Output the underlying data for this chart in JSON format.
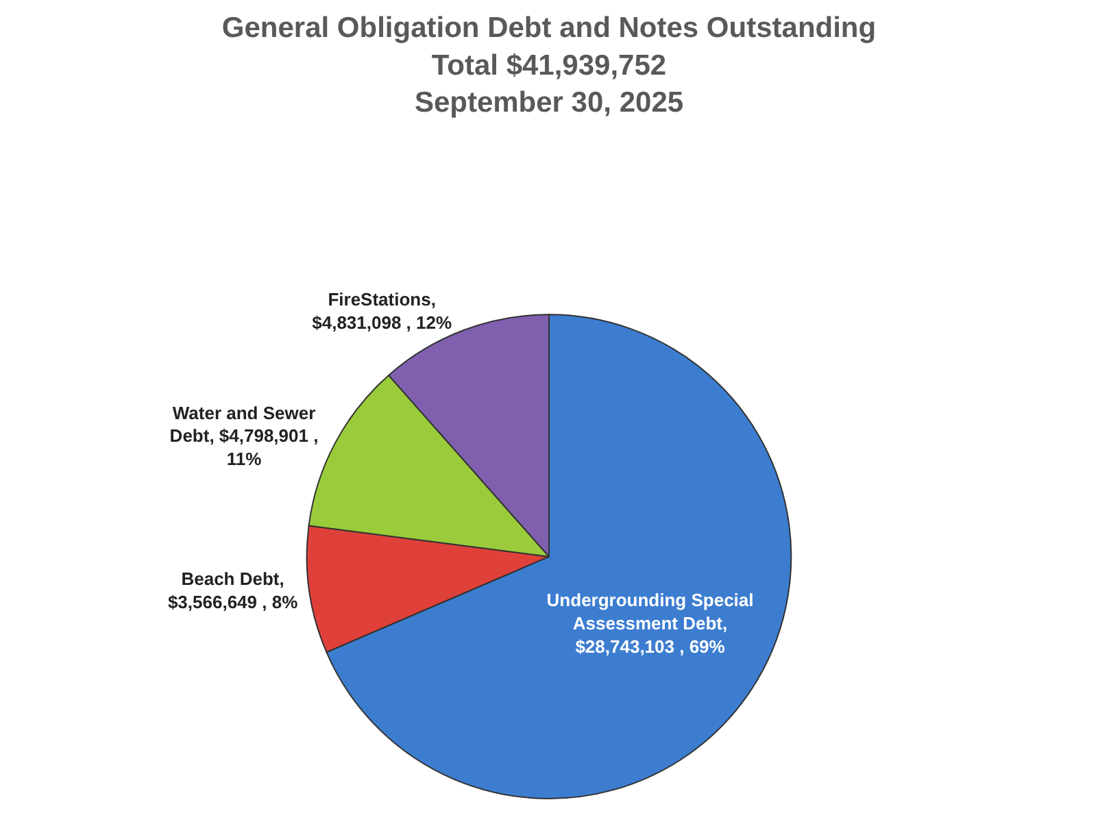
{
  "chart_data": {
    "type": "pie",
    "title": "General Obligation Debt and Notes Outstanding",
    "subtitle": "Total $41,939,752",
    "annotations": [
      "September 30, 2025"
    ],
    "categories": [
      "Undergrounding Special Assessment Debt",
      "Beach Debt",
      "Water and Sewer Debt",
      "FireStations"
    ],
    "values": [
      28743103,
      3566649,
      4798901,
      4831098
    ],
    "value_labels": [
      ", $28,743,103 , 69%",
      ", $3,566,649 , 8%",
      ", $4,798,901 , 11%",
      ", $4,831,098 , 12%"
    ],
    "colors": [
      "#3c7dd0",
      "#e0403a",
      "#9acb3a",
      "#7f5fae"
    ],
    "legend": false
  }
}
